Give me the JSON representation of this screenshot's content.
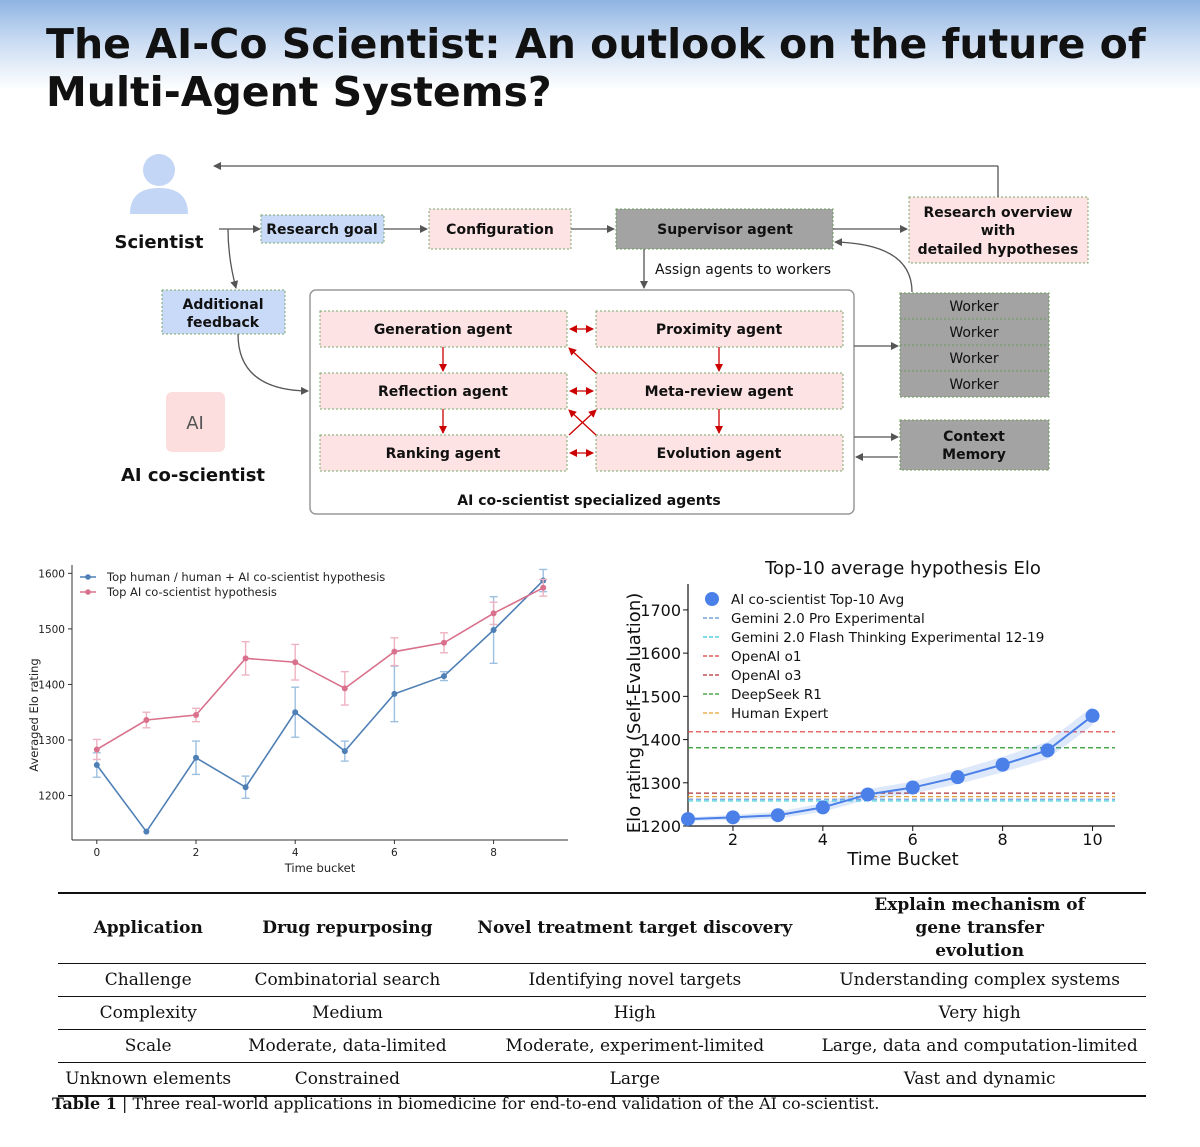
{
  "title": "The AI-Co Scientist: An outlook on the future of Multi-Agent Systems?",
  "diagram": {
    "scientist_label": "Scientist",
    "ai_badge": "AI",
    "ai_label": "AI co-scientist",
    "research_goal": "Research goal",
    "configuration": "Configuration",
    "supervisor": "Supervisor agent",
    "research_overview": [
      "Research overview",
      "with",
      "detailed hypotheses"
    ],
    "additional_feedback": [
      "Additional",
      "feedback"
    ],
    "assign": "Assign agents to workers",
    "agents": {
      "generation": "Generation agent",
      "proximity": "Proximity  agent",
      "reflection": "Reflection agent",
      "meta_review": "Meta-review agent",
      "ranking": "Ranking agent",
      "evolution": "Evolution agent"
    },
    "group_label": "AI co-scientist specialized agents",
    "workers": [
      "Worker",
      "Worker",
      "Worker",
      "Worker"
    ],
    "context_memory": [
      "Context",
      "Memory"
    ],
    "colors": {
      "blue_box": "#c9daf8",
      "pink_box": "#fde3e3",
      "gray_box": "#a3a3a3",
      "arrow_red": "#cc0000"
    }
  },
  "chart_left": {
    "chart_data": {
      "type": "line",
      "x": [
        0,
        1,
        2,
        3,
        4,
        5,
        6,
        7,
        8,
        9
      ],
      "xticks": [
        "0",
        "2",
        "4",
        "6",
        "8"
      ],
      "yticks": [
        "1200",
        "1300",
        "1400",
        "1500",
        "1600"
      ],
      "xlabel": "Time bucket",
      "ylabel": "Averaged Elo rating",
      "xlim": [
        -0.5,
        9.5
      ],
      "ylim": [
        1120,
        1615
      ],
      "series": [
        {
          "name": "Top human / human + AI co-scientist hypothesis",
          "color": "#4e7fb5",
          "values": [
            1255,
            1135,
            1268,
            1215,
            1350,
            1280,
            1383,
            1415,
            1498,
            1587
          ],
          "err": [
            22,
            0,
            30,
            20,
            45,
            18,
            50,
            8,
            60,
            20
          ]
        },
        {
          "name": "Top AI co-scientist hypothesis",
          "color": "#d9708c",
          "values": [
            1283,
            1336,
            1345,
            1447,
            1440,
            1393,
            1459,
            1475,
            1528,
            1574
          ],
          "err": [
            18,
            14,
            12,
            30,
            32,
            30,
            25,
            18,
            20,
            15
          ]
        }
      ],
      "legend_position": "top-left",
      "grid": false
    }
  },
  "chart_right": {
    "chart_data": {
      "type": "scatter",
      "title": "Top-10 average hypothesis Elo",
      "xlabel": "Time Bucket",
      "ylabel": "Elo rating (Self-Evaluation)",
      "xlim": [
        1,
        10.5
      ],
      "ylim": [
        1200,
        1760
      ],
      "xticks": [
        "2",
        "4",
        "6",
        "8",
        "10"
      ],
      "yticks": [
        "1200",
        "1300",
        "1400",
        "1500",
        "1600",
        "1700"
      ],
      "series": [
        {
          "name": "AI co-scientist Top-10 Avg",
          "color": "#4a80e8",
          "x": [
            1,
            2,
            3,
            4,
            5,
            6,
            7,
            8,
            9,
            10
          ],
          "values": [
            1216,
            1220,
            1225,
            1243,
            1273,
            1289,
            1313,
            1342,
            1375,
            1455
          ]
        }
      ],
      "reference_lines": [
        {
          "name": "Gemini 2.0 Pro Experimental",
          "value": 1262,
          "color": "#5b8fd8"
        },
        {
          "name": "Gemini 2.0 Flash Thinking Experimental 12-19",
          "value": 1258,
          "color": "#34c8d8"
        },
        {
          "name": "OpenAI o1",
          "value": 1418,
          "color": "#e03a3a"
        },
        {
          "name": "OpenAI o3",
          "value": 1276,
          "color": "#b03030"
        },
        {
          "name": "DeepSeek R1",
          "value": 1381,
          "color": "#2a9a2a"
        },
        {
          "name": "Human Expert",
          "value": 1268,
          "color": "#e8a030"
        }
      ],
      "legend_position": "top-left",
      "grid": false
    }
  },
  "table": {
    "headers": [
      "Application",
      "Drug repurposing",
      "Novel treatment target discovery",
      "Explain mechanism of gene transfer evolution"
    ],
    "rows": [
      [
        "Challenge",
        "Combinatorial search",
        "Identifying novel targets",
        "Understanding complex systems"
      ],
      [
        "Complexity",
        "Medium",
        "High",
        "Very high"
      ],
      [
        "Scale",
        "Moderate, data-limited",
        "Moderate, experiment-limited",
        "Large, data and computation-limited"
      ],
      [
        "Unknown elements",
        "Constrained",
        "Large",
        "Vast and dynamic"
      ]
    ],
    "caption_label": "Table 1",
    "caption_sep": "|",
    "caption_text": "Three real-world applications in biomedicine for end-to-end validation of the AI co-scientist."
  }
}
